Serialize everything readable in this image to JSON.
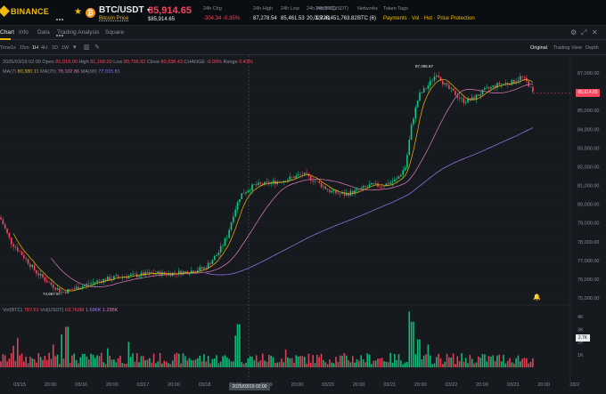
{
  "header": {
    "logo": "BINANCE",
    "pair": "BTC/USDT",
    "pair_sub": "Bitcoin Price",
    "coin_glyph": "₿",
    "price": "85,914.65",
    "price_usd": "$85,914.65",
    "stats": [
      {
        "label": "24h Chg",
        "value": "-304.34 -0.35%",
        "tone": "red"
      },
      {
        "label": "24h High",
        "value": "87,278.54",
        "tone": "normal"
      },
      {
        "label": "24h Low",
        "value": "85,461.53",
        "tone": "normal"
      },
      {
        "label": "24h Vol(BTC)",
        "value": "20,028.41",
        "tone": "normal"
      },
      {
        "label": "24h Vol(USDT)",
        "value": "1,728,451,763.82",
        "tone": "normal"
      },
      {
        "label": "Networks",
        "value": "BTC (6)",
        "tone": "normal"
      },
      {
        "label": "Token Tags",
        "value": "Payments · Vol · Hot · Price Protection",
        "tone": "yellow"
      }
    ],
    "colors": {
      "accent": "#f0b90b",
      "up": "#0ecb81",
      "down": "#f6465d"
    }
  },
  "tabs": [
    "Chart",
    "Info",
    "Data",
    "Trading Analysis",
    "Square"
  ],
  "toolbar": {
    "timeframes": [
      "Time",
      "1s",
      "15m",
      "1H",
      "4H",
      "1D",
      "1W"
    ],
    "active_timeframe": "1H",
    "views": [
      "Original",
      "Trading View",
      "Depth"
    ],
    "active_view": "Original"
  },
  "ohlc_line": {
    "date": "2025/03/19 02:00",
    "open_label": "Open",
    "open": "81,019.00",
    "high_label": "High",
    "high": "81,168.00",
    "low_label": "Low",
    "low": "80,796.92",
    "close_label": "Close",
    "close": "80,938.43",
    "change_label": "CHANGE",
    "change": "-0.09%",
    "range_label": "Range",
    "range": "0.43%"
  },
  "ma_line": {
    "ma7_label": "MA(7)",
    "ma7": "80,380.11",
    "ma25_label": "MA(25)",
    "ma25": "78,102.86",
    "ma99_label": "MA(99)",
    "ma99": "77,015.81"
  },
  "vol_line": {
    "label": "Vol(BTC)",
    "value": "787.61",
    "label2": "Vol(USDT)",
    "value2": "63.763M",
    "ma1": "1.696K",
    "ma2": "1.295K"
  },
  "price_axis": [
    "87,000.00",
    "86,000.00",
    "85,000.00",
    "84,000.00",
    "83,000.00",
    "82,000.00",
    "81,000.00",
    "80,000.00",
    "79,000.00",
    "78,000.00",
    "77,000.00",
    "76,000.00",
    "75,000.00"
  ],
  "volume_axis": [
    "4K",
    "3K",
    "2K",
    "1K"
  ],
  "time_axis": [
    "03/15",
    "20:00",
    "03/16",
    "20:00",
    "03/17",
    "20:00",
    "03/18",
    "20:00",
    "03/19",
    "20:00",
    "03/20",
    "20:00",
    "03/21",
    "20:00",
    "03/22",
    "20:00",
    "03/23",
    "20:00",
    "03/2"
  ],
  "current_price_tag": "85,914.65",
  "volume_tag": "2.7K",
  "crosshair_date": "2025/03/19 02:00",
  "high_marker": "87,395.67",
  "low_marker": "74,967.97",
  "icons": {
    "bell": "bell-icon",
    "settings": "gear-icon",
    "fullscreen": "expand-icon"
  }
}
